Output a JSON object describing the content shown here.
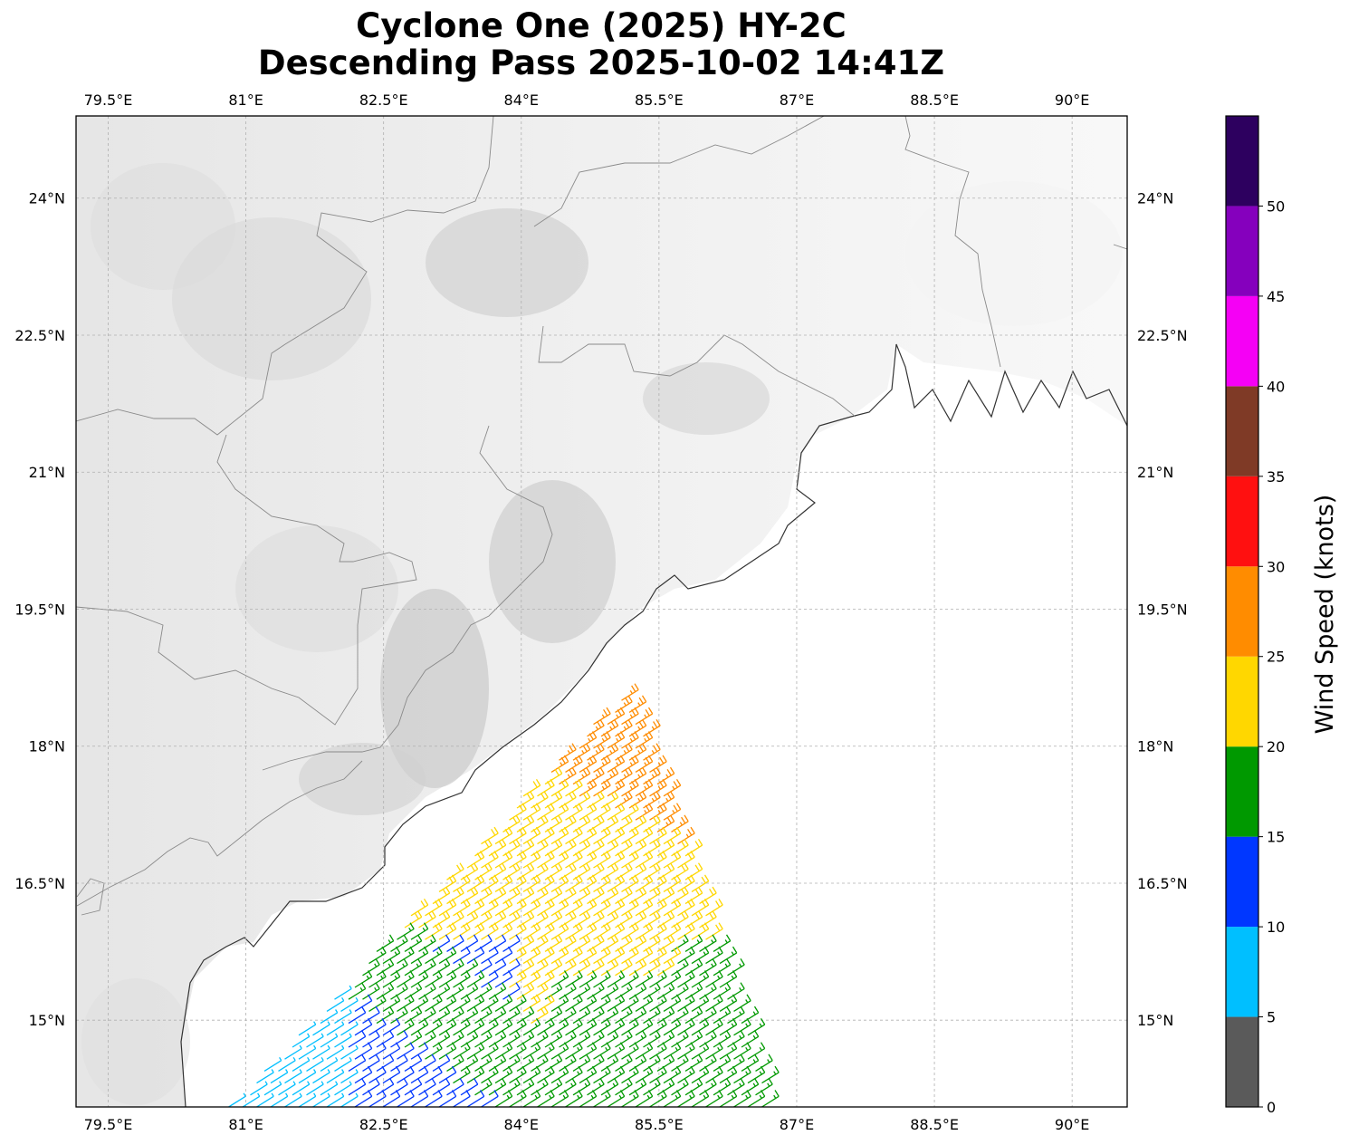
{
  "title": {
    "line1": "Cyclone One (2025) HY-2C",
    "line2": "Descending Pass 2025-10-02 14:41Z"
  },
  "map": {
    "lon_range": [
      79.15,
      90.6
    ],
    "lat_range": [
      14.05,
      24.9
    ],
    "lon_ticks": [
      79.5,
      81,
      82.5,
      84,
      85.5,
      87,
      88.5,
      90
    ],
    "lon_tick_labels": [
      "79.5°E",
      "81°E",
      "82.5°E",
      "84°E",
      "85.5°E",
      "87°E",
      "88.5°E",
      "90°E"
    ],
    "lat_ticks": [
      15,
      16.5,
      18,
      19.5,
      21,
      22.5,
      24
    ],
    "lat_tick_labels": [
      "15°N",
      "16.5°N",
      "18°N",
      "19.5°N",
      "21°N",
      "22.5°N",
      "24°N"
    ],
    "gridlines": true
  },
  "colorbar": {
    "label": "Wind Speed (knots)",
    "bounds": [
      0,
      5,
      10,
      15,
      20,
      25,
      30,
      35,
      40,
      45,
      50,
      55
    ],
    "colors": [
      "#5a5a5a",
      "#00bfff",
      "#0037ff",
      "#009900",
      "#ffd700",
      "#ff8c00",
      "#ff1010",
      "#7f3a26",
      "#f500f5",
      "#8500bd",
      "#2d005f"
    ],
    "tick_values": [
      0,
      5,
      10,
      15,
      20,
      25,
      30,
      35,
      40,
      45,
      50
    ],
    "tick_labels": [
      "0",
      "5",
      "10",
      "15",
      "20",
      "25",
      "30",
      "35",
      "40",
      "45",
      "50"
    ]
  }
}
